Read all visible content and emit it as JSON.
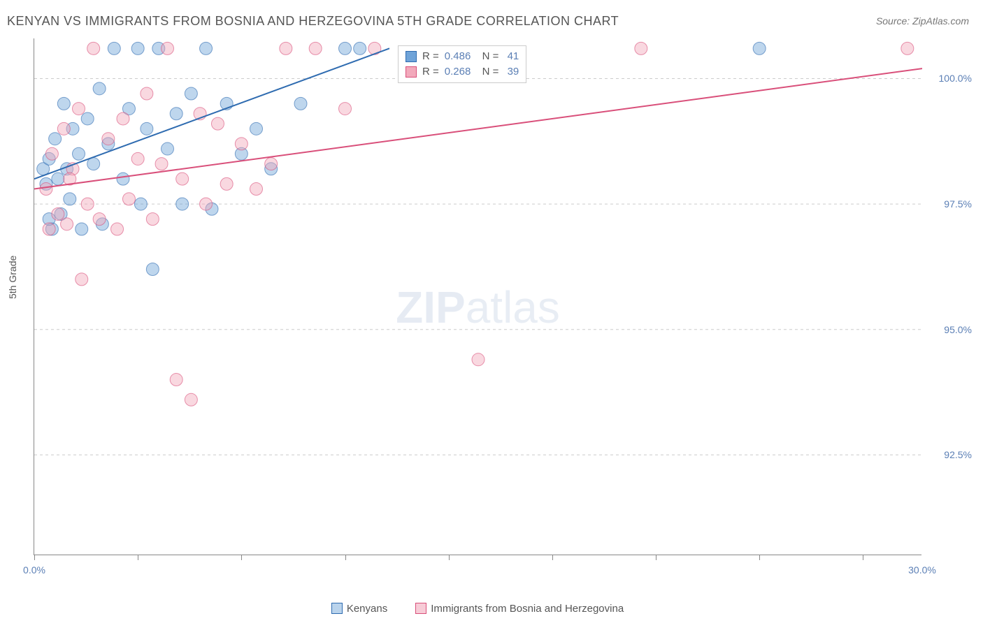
{
  "title": "KENYAN VS IMMIGRANTS FROM BOSNIA AND HERZEGOVINA 5TH GRADE CORRELATION CHART",
  "source": "Source: ZipAtlas.com",
  "watermark_bold": "ZIP",
  "watermark_thin": "atlas",
  "y_axis_label": "5th Grade",
  "chart": {
    "type": "scatter_with_regression",
    "xlim": [
      0.0,
      30.0
    ],
    "ylim": [
      90.5,
      100.8
    ],
    "y_ticks": [
      92.5,
      95.0,
      97.5,
      100.0
    ],
    "y_tick_labels": [
      "92.5%",
      "95.0%",
      "97.5%",
      "100.0%"
    ],
    "x_ticks": [
      0,
      3.5,
      7.0,
      10.5,
      14.0,
      17.5,
      21.0,
      24.5,
      28.0
    ],
    "x_tick_labels_shown": {
      "0": "0.0%",
      "30": "30.0%"
    },
    "background_color": "#ffffff",
    "grid_color": "#cccccc",
    "axis_color": "#888888",
    "label_color": "#5b7fb5",
    "marker_radius": 9,
    "marker_opacity": 0.45,
    "line_width": 2
  },
  "series": [
    {
      "name": "Kenyans",
      "color": "#6fa3d8",
      "stroke": "#2e6bb0",
      "r_value": "0.486",
      "n_value": "41",
      "regression": {
        "x1": 0.0,
        "y1": 98.0,
        "x2": 12.0,
        "y2": 100.6
      },
      "points": [
        [
          0.3,
          98.2
        ],
        [
          0.4,
          97.9
        ],
        [
          0.5,
          98.4
        ],
        [
          0.6,
          97.0
        ],
        [
          0.7,
          98.8
        ],
        [
          0.8,
          98.0
        ],
        [
          0.9,
          97.3
        ],
        [
          1.0,
          99.5
        ],
        [
          1.1,
          98.2
        ],
        [
          1.2,
          97.6
        ],
        [
          1.3,
          99.0
        ],
        [
          1.5,
          98.5
        ],
        [
          1.6,
          97.0
        ],
        [
          1.8,
          99.2
        ],
        [
          2.0,
          98.3
        ],
        [
          2.2,
          99.8
        ],
        [
          2.3,
          97.1
        ],
        [
          2.5,
          98.7
        ],
        [
          2.7,
          100.6
        ],
        [
          3.0,
          98.0
        ],
        [
          3.2,
          99.4
        ],
        [
          3.5,
          100.6
        ],
        [
          3.6,
          97.5
        ],
        [
          3.8,
          99.0
        ],
        [
          4.0,
          96.2
        ],
        [
          4.2,
          100.6
        ],
        [
          4.5,
          98.6
        ],
        [
          4.8,
          99.3
        ],
        [
          5.0,
          97.5
        ],
        [
          5.3,
          99.7
        ],
        [
          5.8,
          100.6
        ],
        [
          6.0,
          97.4
        ],
        [
          6.5,
          99.5
        ],
        [
          7.0,
          98.5
        ],
        [
          7.5,
          99.0
        ],
        [
          8.0,
          98.2
        ],
        [
          9.0,
          99.5
        ],
        [
          10.5,
          100.6
        ],
        [
          11.0,
          100.6
        ],
        [
          24.5,
          100.6
        ],
        [
          0.5,
          97.2
        ]
      ]
    },
    {
      "name": "Immigrants from Bosnia and Herzegovina",
      "color": "#f2a9bb",
      "stroke": "#d94f7a",
      "r_value": "0.268",
      "n_value": "39",
      "regression": {
        "x1": 0.0,
        "y1": 97.8,
        "x2": 30.0,
        "y2": 100.2
      },
      "points": [
        [
          0.4,
          97.8
        ],
        [
          0.5,
          97.0
        ],
        [
          0.6,
          98.5
        ],
        [
          0.8,
          97.3
        ],
        [
          1.0,
          99.0
        ],
        [
          1.1,
          97.1
        ],
        [
          1.3,
          98.2
        ],
        [
          1.5,
          99.4
        ],
        [
          1.6,
          96.0
        ],
        [
          1.8,
          97.5
        ],
        [
          2.0,
          100.6
        ],
        [
          2.2,
          97.2
        ],
        [
          2.5,
          98.8
        ],
        [
          2.8,
          97.0
        ],
        [
          3.0,
          99.2
        ],
        [
          3.2,
          97.6
        ],
        [
          3.5,
          98.4
        ],
        [
          3.8,
          99.7
        ],
        [
          4.0,
          97.2
        ],
        [
          4.3,
          98.3
        ],
        [
          4.5,
          100.6
        ],
        [
          4.8,
          94.0
        ],
        [
          5.0,
          98.0
        ],
        [
          5.3,
          93.6
        ],
        [
          5.6,
          99.3
        ],
        [
          5.8,
          97.5
        ],
        [
          6.2,
          99.1
        ],
        [
          6.5,
          97.9
        ],
        [
          7.0,
          98.7
        ],
        [
          7.5,
          97.8
        ],
        [
          8.0,
          98.3
        ],
        [
          8.5,
          100.6
        ],
        [
          9.5,
          100.6
        ],
        [
          10.5,
          99.4
        ],
        [
          11.5,
          100.6
        ],
        [
          15.0,
          94.4
        ],
        [
          20.5,
          100.6
        ],
        [
          29.5,
          100.6
        ],
        [
          1.2,
          98.0
        ]
      ]
    }
  ],
  "legend_bottom": {
    "items": [
      {
        "label": "Kenyans",
        "fill": "#b9d3ec",
        "stroke": "#2e6bb0"
      },
      {
        "label": "Immigrants from Bosnia and Herzegovina",
        "fill": "#f7ccd7",
        "stroke": "#d94f7a"
      }
    ]
  },
  "legend_box": {
    "r_label": "R =",
    "n_label": "N ="
  }
}
